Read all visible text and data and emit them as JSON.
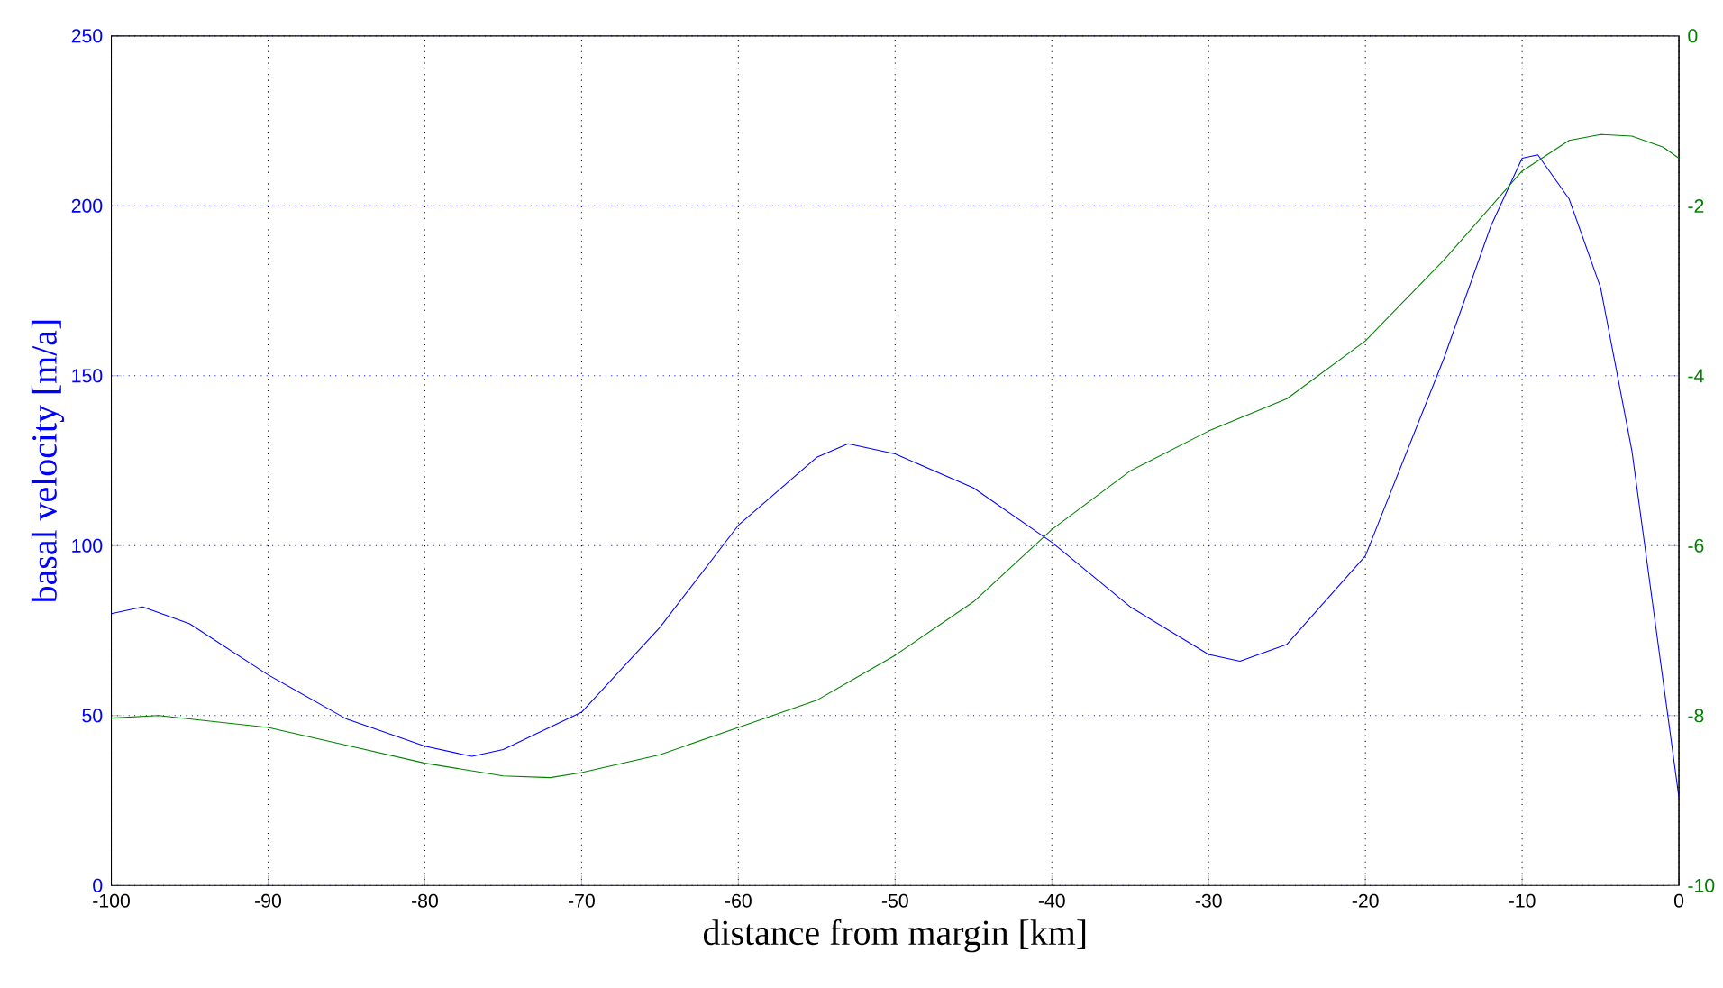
{
  "chart_data": {
    "type": "line",
    "xlabel": "distance from margin [km]",
    "ylabel": "basal velocity [m/a]",
    "xlim": [
      -100,
      0
    ],
    "xticks": [
      -100,
      -90,
      -80,
      -70,
      -60,
      -50,
      -40,
      -30,
      -20,
      -10,
      0
    ],
    "ylim": [
      0,
      250
    ],
    "yticks": [
      0,
      50,
      100,
      150,
      200,
      250
    ],
    "y2lim": [
      -10,
      0
    ],
    "y2ticks": [
      -10,
      -8,
      -6,
      -4,
      -2,
      0
    ],
    "grid": true,
    "series": [
      {
        "color": "#0000ff",
        "x": [
          -100,
          -98,
          -95,
          -90,
          -85,
          -80,
          -77,
          -75,
          -70,
          -65,
          -60,
          -55,
          -53,
          -50,
          -45,
          -40,
          -35,
          -30,
          -28,
          -25,
          -20,
          -15,
          -12,
          -10,
          -9,
          -7,
          -5,
          -3,
          0
        ],
        "values": [
          80,
          82,
          77,
          62,
          49,
          41,
          38,
          40,
          51,
          76,
          106,
          126,
          130,
          127,
          117,
          101,
          82,
          68,
          66,
          71,
          97,
          155,
          194,
          214,
          215,
          202,
          176,
          128,
          26
        ]
      },
      {
        "color": "#008000",
        "axis": "y2",
        "x": [
          -100,
          -97,
          -90,
          -85,
          -80,
          -75,
          -72,
          -70,
          -65,
          -60,
          -55,
          -50,
          -45,
          -40,
          -35,
          -30,
          -25,
          -20,
          -15,
          -10,
          -7,
          -5,
          -3,
          -1,
          0
        ],
        "values": [
          -8.03,
          -8.0,
          -8.14,
          -8.35,
          -8.56,
          -8.71,
          -8.73,
          -8.67,
          -8.46,
          -8.14,
          -7.82,
          -7.29,
          -6.66,
          -5.81,
          -5.12,
          -4.65,
          -4.27,
          -3.59,
          -2.64,
          -1.59,
          -1.23,
          -1.16,
          -1.18,
          -1.31,
          -1.44
        ]
      }
    ]
  }
}
